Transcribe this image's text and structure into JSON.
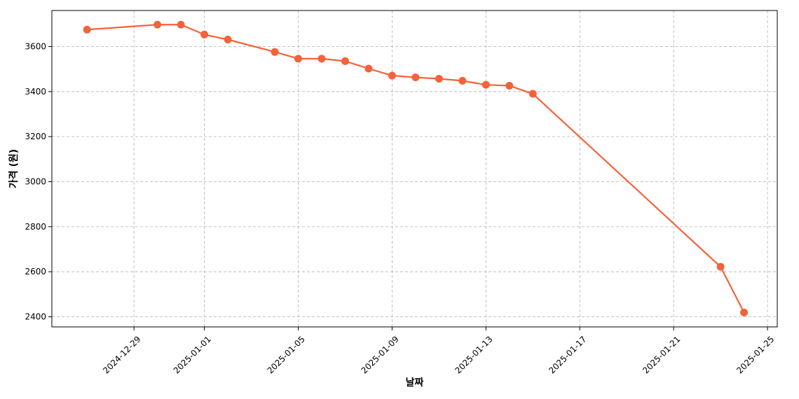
{
  "chart_data": {
    "type": "line",
    "title": "",
    "xlabel": "날짜",
    "ylabel": "가격 (원)",
    "grid": true,
    "color": "#f4623a",
    "xlim": [
      "2024-12-25T12:00",
      "2025-01-25T10:00"
    ],
    "ylim": [
      2355,
      3760
    ],
    "x_ticks": [
      "2024-12-29",
      "2025-01-01",
      "2025-01-05",
      "2025-01-09",
      "2025-01-13",
      "2025-01-17",
      "2025-01-21",
      "2025-01-25"
    ],
    "y_ticks": [
      2400,
      2600,
      2800,
      3000,
      3200,
      3400,
      3600
    ],
    "series": [
      {
        "x": [
          "2024-12-27",
          "2024-12-30",
          "2024-12-31",
          "2025-01-01",
          "2025-01-02",
          "2025-01-04",
          "2025-01-05",
          "2025-01-06",
          "2025-01-07",
          "2025-01-08",
          "2025-01-09",
          "2025-01-10",
          "2025-01-11",
          "2025-01-12",
          "2025-01-13",
          "2025-01-14",
          "2025-01-15",
          "2025-01-23",
          "2025-01-24"
        ],
        "values": [
          3675,
          3697,
          3697,
          3653,
          3631,
          3576,
          3546,
          3546,
          3535,
          3502,
          3471,
          3463,
          3457,
          3448,
          3430,
          3426,
          3390,
          2622,
          2419
        ]
      }
    ]
  }
}
